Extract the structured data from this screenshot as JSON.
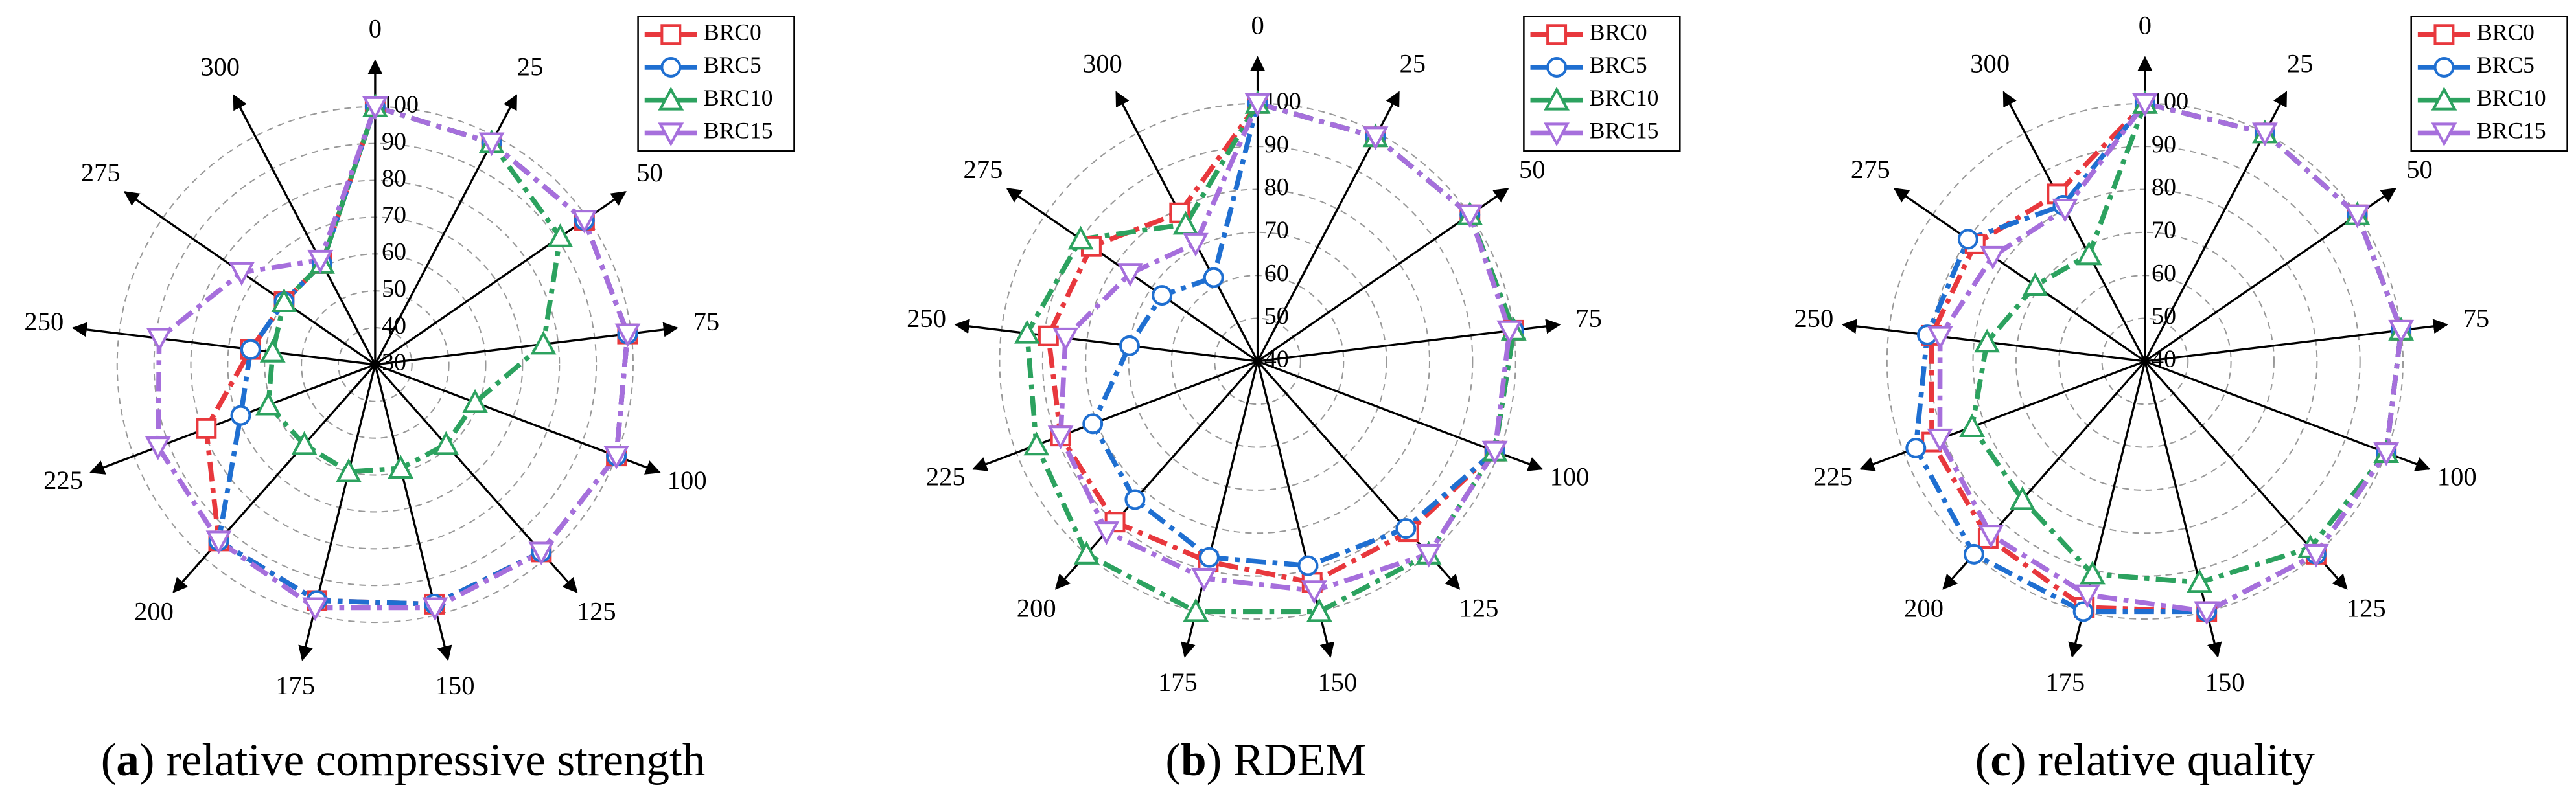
{
  "chart_data": [
    {
      "type": "radar",
      "caption": [
        "(",
        "a",
        ") relative compressive strength"
      ],
      "categories": [
        "0",
        "25",
        "50",
        "75",
        "100",
        "125",
        "150",
        "175",
        "200",
        "225",
        "250",
        "275",
        "300"
      ],
      "rlim": [
        30,
        100
      ],
      "rticks": [
        30,
        40,
        50,
        60,
        70,
        80,
        90,
        100
      ],
      "grid": true,
      "legend": "upper right",
      "series": [
        {
          "name": "BRC0",
          "color": "#e8383d",
          "marker": "square",
          "values": [
            100,
            98,
            99,
            99,
            100,
            98,
            97,
            96,
            94,
            79,
            64,
            60,
            61
          ]
        },
        {
          "name": "BRC5",
          "color": "#1f6fd1",
          "marker": "circle",
          "values": [
            100,
            98,
            99,
            99,
            100,
            98,
            97,
            96,
            94,
            69,
            64,
            60,
            61
          ]
        },
        {
          "name": "BRC10",
          "color": "#2ca25f",
          "marker": "triangle-up",
          "values": [
            100,
            98,
            91,
            76,
            59,
            59,
            59,
            60,
            59,
            61,
            58,
            60,
            61
          ]
        },
        {
          "name": "BRC15",
          "color": "#a66fdc",
          "marker": "triangle-down",
          "values": [
            100,
            98,
            99,
            99,
            100,
            98,
            98,
            98,
            94,
            93,
            89,
            74,
            62
          ]
        }
      ]
    },
    {
      "type": "radar",
      "caption": [
        "(",
        "b",
        ") RDEM"
      ],
      "categories": [
        "0",
        "25",
        "50",
        "75",
        "100",
        "125",
        "150",
        "175",
        "200",
        "225",
        "250",
        "275",
        "300"
      ],
      "rlim": [
        40,
        100
      ],
      "rticks": [
        40,
        50,
        60,
        70,
        80,
        90,
        100
      ],
      "grid": true,
      "legend": "upper right",
      "series": [
        {
          "name": "BRC0",
          "color": "#e8383d",
          "marker": "square",
          "values": [
            100,
            99,
            100,
            100,
            99,
            93,
            93,
            88,
            90,
            89,
            89,
            87,
            79
          ]
        },
        {
          "name": "BRC5",
          "color": "#1f6fd1",
          "marker": "circle",
          "values": [
            100,
            99,
            100,
            100,
            99,
            92,
            89,
            87,
            83,
            81,
            70,
            67,
            62
          ]
        },
        {
          "name": "BRC10",
          "color": "#2ca25f",
          "marker": "triangle-up",
          "values": [
            100,
            99,
            100,
            100,
            99,
            100,
            100,
            100,
            100,
            95,
            94,
            90,
            76
          ]
        },
        {
          "name": "BRC15",
          "color": "#a66fdc",
          "marker": "triangle-down",
          "values": [
            100,
            99,
            100,
            99,
            99,
            100,
            95,
            92,
            93,
            89,
            85,
            76,
            71
          ]
        }
      ]
    },
    {
      "type": "radar",
      "caption": [
        "(",
        "c",
        ") relative quality"
      ],
      "categories": [
        "0",
        "25",
        "50",
        "75",
        "100",
        "125",
        "150",
        "175",
        "200",
        "225",
        "250",
        "275",
        "300"
      ],
      "rlim": [
        40,
        100
      ],
      "rticks": [
        40,
        50,
        60,
        70,
        80,
        90,
        100
      ],
      "grid": true,
      "legend": "upper right",
      "series": [
        {
          "name": "BRC0",
          "color": "#e8383d",
          "marker": "square",
          "values": [
            100,
            100,
            100,
            100,
            100,
            100,
            100,
            99,
            95,
            93,
            90,
            88,
            84
          ]
        },
        {
          "name": "BRC5",
          "color": "#1f6fd1",
          "marker": "circle",
          "values": [
            100,
            100,
            100,
            100,
            100,
            100,
            100,
            100,
            100,
            97,
            91,
            90,
            81
          ]
        },
        {
          "name": "BRC10",
          "color": "#2ca25f",
          "marker": "triangle-up",
          "values": [
            100,
            100,
            100,
            100,
            100,
            98,
            93,
            91,
            83,
            83,
            77,
            71,
            68
          ]
        },
        {
          "name": "BRC15",
          "color": "#a66fdc",
          "marker": "triangle-down",
          "values": [
            100,
            100,
            100,
            100,
            100,
            100,
            100,
            96,
            94,
            91,
            88,
            83,
            80
          ]
        }
      ]
    }
  ]
}
